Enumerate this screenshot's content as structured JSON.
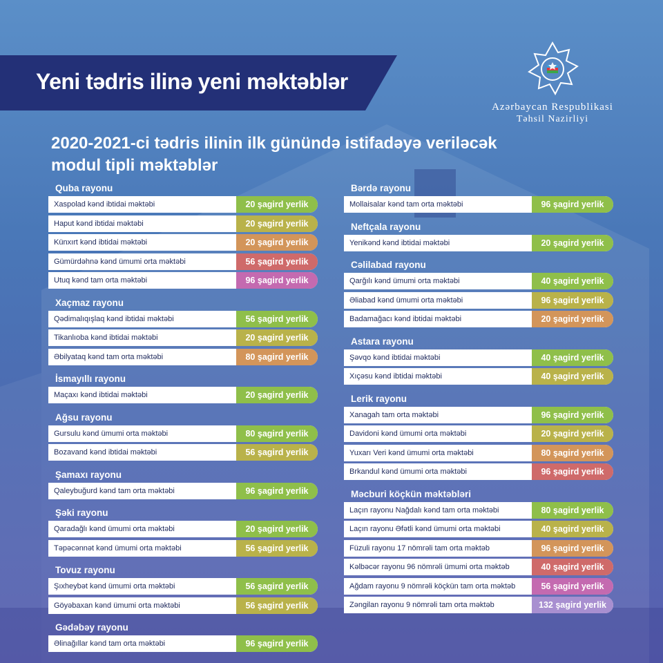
{
  "header": {
    "title": "Yeni tədris ilinə yeni məktəblər",
    "subtitle_line1": "2020-2021-ci tədris ilinin ilk günündə istifadəyə veriləcək",
    "subtitle_line2": "modul tipli məktəblər"
  },
  "ministry": {
    "line1": "Azərbaycan Respublikasi",
    "line2": "Təhsil Nazirliyi"
  },
  "colors": {
    "green": "#8fbf4a",
    "olive": "#b9b24a",
    "orange": "#d3955a",
    "red": "#cf6a6a",
    "pink": "#c46ab0",
    "lavender": "#a88fd0",
    "banner": "#233077"
  },
  "left_column": [
    {
      "region": "Quba rayonu",
      "schools": [
        {
          "name": "Xaspolad kənd ibtidai məktəbi",
          "capacity": "20 şagird yerlik",
          "color": "#8fbf4a"
        },
        {
          "name": "Haput kənd ibtidai məktəbi",
          "capacity": "20 şagird yerlik",
          "color": "#b9b24a"
        },
        {
          "name": "Künxırt kənd ibtidai məktəbi",
          "capacity": "20 şagird yerlik",
          "color": "#d3955a"
        },
        {
          "name": "Gümürdəhnə kənd ümumi orta məktəbi",
          "capacity": "56 şagird yerlik",
          "color": "#cf6a6a"
        },
        {
          "name": "Utuq kənd tam orta məktəbi",
          "capacity": "96 şagird yerlik",
          "color": "#c46ab0"
        }
      ]
    },
    {
      "region": "Xaçmaz rayonu",
      "schools": [
        {
          "name": "Qədimalıqışlaq kənd ibtidai məktəbi",
          "capacity": "56 şagird yerlik",
          "color": "#8fbf4a"
        },
        {
          "name": "Tikanlıoba kənd ibtidai məktəbi",
          "capacity": "20 şagird yerlik",
          "color": "#b9b24a"
        },
        {
          "name": "Əbilyataq kənd tam orta məktəbi",
          "capacity": "80 şagird yerlik",
          "color": "#d3955a"
        }
      ]
    },
    {
      "region": "İsmayıllı rayonu",
      "schools": [
        {
          "name": "Maçaxı kənd ibtidai məktəbi",
          "capacity": "20 şagird yerlik",
          "color": "#8fbf4a"
        }
      ]
    },
    {
      "region": "Ağsu rayonu",
      "schools": [
        {
          "name": "Gursulu kənd ümumi orta məktəbi",
          "capacity": "80 şagird yerlik",
          "color": "#8fbf4a"
        },
        {
          "name": "Bozavand kənd ibtidai məktəbi",
          "capacity": "56 şagird yerlik",
          "color": "#b9b24a"
        }
      ]
    },
    {
      "region": "Şamaxı rayonu",
      "schools": [
        {
          "name": "Qaleybuğurd kənd tam orta məktəbi",
          "capacity": "96 şagird yerlik",
          "color": "#8fbf4a"
        }
      ]
    },
    {
      "region": "Şəki rayonu",
      "schools": [
        {
          "name": "Qaradağlı kənd ümumi orta məktəbi",
          "capacity": "20 şagird yerlik",
          "color": "#8fbf4a"
        },
        {
          "name": "Təpəcənnət kənd ümumi orta məktəbi",
          "capacity": "56 şagird yerlik",
          "color": "#b9b24a"
        }
      ]
    },
    {
      "region": "Tovuz rayonu",
      "schools": [
        {
          "name": "Şıxheybət kənd ümumi orta məktəbi",
          "capacity": "56 şagird yerlik",
          "color": "#8fbf4a"
        },
        {
          "name": "Göyəbaxan kənd ümumi orta məktəbi",
          "capacity": "56 şagird yerlik",
          "color": "#b9b24a"
        }
      ]
    },
    {
      "region": "Gədəbəy rayonu",
      "schools": [
        {
          "name": "Əlinağıllar kənd tam orta məktəbi",
          "capacity": "96 şagird yerlik",
          "color": "#8fbf4a"
        }
      ]
    }
  ],
  "right_column": [
    {
      "region": "Bərdə rayonu",
      "schools": [
        {
          "name": "Mollaisalar kənd tam orta məktəbi",
          "capacity": "96 şagird yerlik",
          "color": "#8fbf4a"
        }
      ]
    },
    {
      "region": "Neftçala rayonu",
      "schools": [
        {
          "name": "Yenikənd kənd ibtidai məktəbi",
          "capacity": "20 şagird yerlik",
          "color": "#8fbf4a"
        }
      ]
    },
    {
      "region": "Cəlilabad rayonu",
      "schools": [
        {
          "name": "Qarğılı kənd ümumi orta məktəbi",
          "capacity": "40 şagird yerlik",
          "color": "#8fbf4a"
        },
        {
          "name": "Əliabad kənd ümumi orta məktəbi",
          "capacity": "96 şagird yerlik",
          "color": "#b9b24a"
        },
        {
          "name": "Badamağacı kənd ibtidai məktəbi",
          "capacity": "20 şagird yerlik",
          "color": "#d3955a"
        }
      ]
    },
    {
      "region": "Astara rayonu",
      "schools": [
        {
          "name": "Şəvqo kənd ibtidai məktəbi",
          "capacity": "40 şagird yerlik",
          "color": "#8fbf4a"
        },
        {
          "name": "Xıçəsu kənd ibtidai məktəbi",
          "capacity": "40 şagird yerlik",
          "color": "#b9b24a"
        }
      ]
    },
    {
      "region": "Lerik rayonu",
      "schools": [
        {
          "name": "Xanagah tam orta məktəbi",
          "capacity": "96 şagird yerlik",
          "color": "#8fbf4a"
        },
        {
          "name": "Davidoni kənd ümumi orta məktəbi",
          "capacity": "20 şagird yerlik",
          "color": "#b9b24a"
        },
        {
          "name": "Yuxarı Veri kənd ümumi orta məktəbi",
          "capacity": "80 şagird yerlik",
          "color": "#d3955a"
        },
        {
          "name": "Brkandul kənd ümumi orta məktəbi",
          "capacity": "96 şagird yerlik",
          "color": "#cf6a6a"
        }
      ]
    },
    {
      "region": "Məcburi köçkün məktəbləri",
      "schools": [
        {
          "name": "Laçın rayonu Nağdalı kənd tam orta məktəbi",
          "capacity": "80 şagird yerlik",
          "color": "#8fbf4a"
        },
        {
          "name": "Laçın rayonu Əfətli kənd ümumi orta məktəbi",
          "capacity": "40 şagird yerlik",
          "color": "#b9b24a"
        },
        {
          "name": "Füzuli rayonu 17 nömrəli tam orta məktəb",
          "capacity": "96 şagird yerlik",
          "color": "#d3955a"
        },
        {
          "name": "Kəlbəcər rayonu 96 nömrəli ümumi orta məktəb",
          "capacity": "40 şagird yerlik",
          "color": "#cf6a6a"
        },
        {
          "name": "Ağdam rayonu 9 nömrəli köçkün tam orta məktəb",
          "capacity": "56 şagird yerlik",
          "color": "#c46ab0"
        },
        {
          "name": "Zəngilan rayonu 9 nömrəli tam orta məktəb",
          "capacity": "132 şagird yerlik",
          "color": "#a88fd0"
        }
      ]
    }
  ]
}
